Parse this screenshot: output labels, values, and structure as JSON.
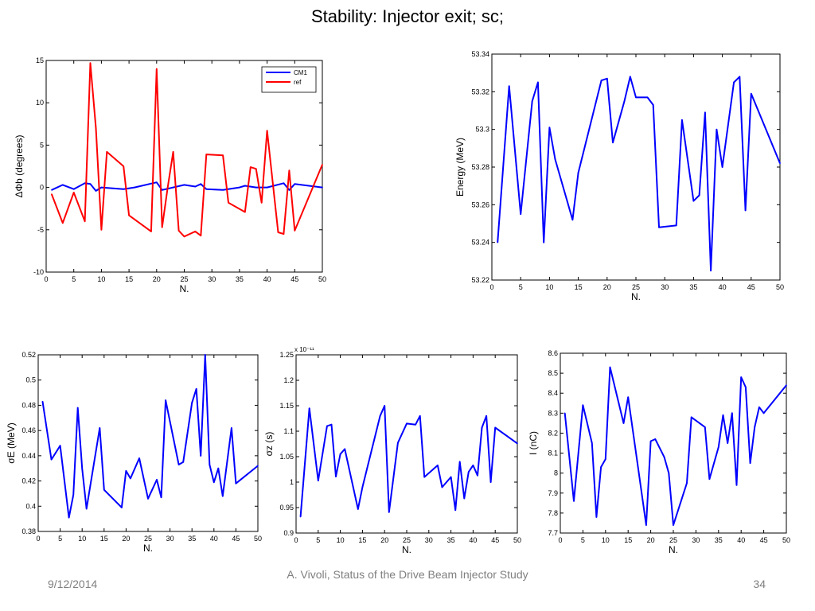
{
  "slide": {
    "title": "Stability: Injector exit; sc;",
    "footer_date": "9/12/2014",
    "footer_author": "A. Vivoli, Status of the Drive Beam Injector Study",
    "page_number": "34"
  },
  "colors": {
    "blue": "#0000ff",
    "red": "#ff0000",
    "axis": "#000000"
  },
  "chart_data": [
    {
      "id": "phase",
      "type": "line",
      "xlabel": "N.",
      "ylabel": "ΔΦb (degrees)",
      "xlim": [
        0,
        50
      ],
      "ylim": [
        -10,
        15
      ],
      "xticks": [
        0,
        5,
        10,
        15,
        20,
        25,
        30,
        35,
        40,
        45,
        50
      ],
      "yticks": [
        -10,
        -5,
        0,
        5,
        10,
        15
      ],
      "legend": "top-right",
      "grid": false,
      "series": [
        {
          "name": "CM1",
          "color": "#0000ff",
          "x": [
            1,
            3,
            5,
            7,
            8,
            9,
            10,
            14,
            16,
            20,
            21,
            25,
            27,
            28,
            29,
            32,
            35,
            36,
            38,
            40,
            43,
            44,
            45,
            50
          ],
          "y": [
            -0.3,
            0.3,
            -0.2,
            0.5,
            0.4,
            -0.4,
            0.0,
            -0.2,
            0.0,
            0.6,
            -0.3,
            0.3,
            0.1,
            0.4,
            -0.2,
            -0.3,
            0.0,
            0.2,
            0.0,
            0.0,
            0.5,
            -0.3,
            0.4,
            0.0
          ]
        },
        {
          "name": "ref",
          "color": "#ff0000",
          "x": [
            1,
            3,
            5,
            7,
            8,
            9,
            10,
            11,
            14,
            15,
            19,
            20,
            21,
            22,
            23,
            24,
            25,
            27,
            28,
            29,
            32,
            33,
            36,
            37,
            38,
            39,
            40,
            42,
            43,
            44,
            45,
            50
          ],
          "y": [
            -0.8,
            -4.2,
            -0.6,
            -4.0,
            14.7,
            7.0,
            -5.0,
            4.2,
            2.5,
            -3.3,
            -5.2,
            14.0,
            -4.7,
            0.0,
            4.2,
            -5.1,
            -5.8,
            -5.2,
            -5.7,
            3.9,
            3.8,
            -1.8,
            -2.9,
            2.4,
            2.2,
            -1.8,
            6.7,
            -5.3,
            -5.5,
            2.0,
            -5.1,
            2.7
          ]
        }
      ]
    },
    {
      "id": "energy",
      "type": "line",
      "xlabel": "N.",
      "ylabel": "Energy (MeV)",
      "xlim": [
        0,
        50
      ],
      "ylim": [
        53.22,
        53.34
      ],
      "xticks": [
        0,
        5,
        10,
        15,
        20,
        25,
        30,
        35,
        40,
        45,
        50
      ],
      "yticks": [
        53.22,
        53.24,
        53.26,
        53.28,
        53.3,
        53.32,
        53.34
      ],
      "ytick_labels": [
        "53.22",
        "53.24",
        "53.26",
        "53.28",
        "53.3",
        "53.32",
        "53.34"
      ],
      "grid": false,
      "series": [
        {
          "color": "#0000ff",
          "x": [
            1,
            3,
            5,
            7,
            8,
            9,
            10,
            11,
            14,
            15,
            19,
            20,
            21,
            23,
            24,
            25,
            27,
            28,
            29,
            32,
            33,
            35,
            36,
            37,
            38,
            39,
            40,
            42,
            43,
            44,
            45,
            50
          ],
          "y": [
            53.24,
            53.323,
            53.255,
            53.315,
            53.325,
            53.24,
            53.301,
            53.284,
            53.252,
            53.277,
            53.326,
            53.327,
            53.293,
            53.315,
            53.328,
            53.317,
            53.317,
            53.313,
            53.248,
            53.249,
            53.305,
            53.262,
            53.265,
            53.309,
            53.225,
            53.3,
            53.28,
            53.325,
            53.328,
            53.257,
            53.319,
            53.282
          ]
        }
      ]
    },
    {
      "id": "sigmaE",
      "type": "line",
      "xlabel": "N.",
      "ylabel": "σE (MeV)",
      "xlim": [
        0,
        50
      ],
      "ylim": [
        0.38,
        0.52
      ],
      "xticks": [
        0,
        5,
        10,
        15,
        20,
        25,
        30,
        35,
        40,
        45,
        50
      ],
      "yticks": [
        0.38,
        0.4,
        0.42,
        0.44,
        0.46,
        0.48,
        0.5,
        0.52
      ],
      "ytick_labels": [
        "0.38",
        "0.4",
        "0.42",
        "0.44",
        "0.46",
        "0.48",
        "0.5",
        "0.52"
      ],
      "grid": false,
      "series": [
        {
          "color": "#0000ff",
          "x": [
            1,
            3,
            5,
            7,
            8,
            9,
            10,
            11,
            14,
            15,
            19,
            20,
            21,
            23,
            25,
            27,
            28,
            29,
            32,
            33,
            35,
            36,
            37,
            38,
            39,
            40,
            41,
            42,
            44,
            45,
            50
          ],
          "y": [
            0.483,
            0.437,
            0.448,
            0.391,
            0.409,
            0.478,
            0.43,
            0.398,
            0.462,
            0.413,
            0.399,
            0.428,
            0.422,
            0.438,
            0.406,
            0.421,
            0.407,
            0.484,
            0.433,
            0.435,
            0.482,
            0.493,
            0.44,
            0.52,
            0.433,
            0.419,
            0.43,
            0.408,
            0.462,
            0.418,
            0.432
          ]
        }
      ]
    },
    {
      "id": "sigmaZ",
      "type": "line",
      "xlabel": "N.",
      "ylabel": "σz (s)",
      "xlim": [
        0,
        50
      ],
      "ylim": [
        0.9,
        1.25
      ],
      "xticks": [
        0,
        5,
        10,
        15,
        20,
        25,
        30,
        35,
        40,
        45,
        50
      ],
      "yticks": [
        0.9,
        0.95,
        1.0,
        1.05,
        1.1,
        1.15,
        1.2,
        1.25
      ],
      "ytick_labels": [
        "0.9",
        "0.95",
        "1",
        "1.05",
        "1.1",
        "1.15",
        "1.2",
        "1.25"
      ],
      "yscale_label": "x 10⁻¹¹",
      "grid": false,
      "series": [
        {
          "color": "#0000ff",
          "x": [
            1,
            3,
            5,
            7,
            8,
            9,
            10,
            11,
            14,
            15,
            19,
            20,
            21,
            23,
            25,
            27,
            28,
            29,
            32,
            33,
            35,
            36,
            37,
            38,
            39,
            40,
            41,
            42,
            43,
            44,
            45,
            50
          ],
          "y": [
            0.932,
            1.145,
            1.003,
            1.11,
            1.113,
            1.011,
            1.055,
            1.065,
            0.947,
            0.99,
            1.13,
            1.15,
            0.941,
            1.077,
            1.115,
            1.113,
            1.13,
            1.01,
            1.033,
            0.99,
            1.01,
            0.945,
            1.04,
            0.968,
            1.02,
            1.033,
            1.013,
            1.107,
            1.13,
            1.0,
            1.107,
            1.076
          ]
        }
      ]
    },
    {
      "id": "current",
      "type": "line",
      "xlabel": "N.",
      "ylabel": "I (nC)",
      "xlim": [
        0,
        50
      ],
      "ylim": [
        7.7,
        8.6
      ],
      "xticks": [
        0,
        5,
        10,
        15,
        20,
        25,
        30,
        35,
        40,
        45,
        50
      ],
      "yticks": [
        7.7,
        7.8,
        7.9,
        8.0,
        8.1,
        8.2,
        8.3,
        8.4,
        8.5,
        8.6
      ],
      "ytick_labels": [
        "7.7",
        "7.8",
        "7.9",
        "8",
        "8.1",
        "8.2",
        "8.3",
        "8.4",
        "8.5",
        "8.6"
      ],
      "grid": false,
      "series": [
        {
          "color": "#0000ff",
          "x": [
            1,
            3,
            5,
            7,
            8,
            9,
            10,
            11,
            14,
            15,
            19,
            20,
            21,
            23,
            24,
            25,
            28,
            29,
            32,
            33,
            35,
            36,
            37,
            38,
            39,
            40,
            41,
            42,
            43,
            44,
            45,
            50
          ],
          "y": [
            8.3,
            7.86,
            8.34,
            8.15,
            7.78,
            8.03,
            8.07,
            8.53,
            8.25,
            8.38,
            7.74,
            8.16,
            8.17,
            8.08,
            8.0,
            7.74,
            7.95,
            8.28,
            8.23,
            7.97,
            8.13,
            8.29,
            8.15,
            8.3,
            7.94,
            8.48,
            8.43,
            8.05,
            8.23,
            8.33,
            8.3,
            8.44
          ]
        }
      ]
    }
  ]
}
